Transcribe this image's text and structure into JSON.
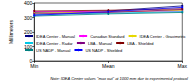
{
  "chart_data": {
    "type": "line",
    "y_label": "Millimeters",
    "annotation": "Note: IDEA Center values \"max out\" at 1000 mm due to experimental protocol",
    "categories": [
      "Min",
      "Mean",
      "Max"
    ],
    "series": [
      {
        "name": "IDEA Center - Manual",
        "color": "#000080",
        "values": [
          335,
          345,
          380
        ]
      },
      {
        "name": "Canadian Standard",
        "color": "#ff00ff",
        "values": [
          340,
          342,
          344
        ]
      },
      {
        "name": "IDEA Center - Gravimetric",
        "color": "#e6d800",
        "values": [
          330,
          338,
          350
        ]
      },
      {
        "name": "IDEA Center - Radar",
        "color": "#00c8e6",
        "values": [
          320,
          330,
          340
        ]
      },
      {
        "name": "LBA - Manual",
        "color": "#800080",
        "values": [
          325,
          335,
          355
        ]
      },
      {
        "name": "LBA - Shielded",
        "color": "#800000",
        "values": [
          345,
          350,
          360
        ]
      },
      {
        "name": "US NADP - Manual",
        "color": "#008080",
        "values": [
          310,
          325,
          335
        ]
      },
      {
        "name": "US NADP - Shielded",
        "color": "#0000ff",
        "values": [
          315,
          340,
          370
        ]
      }
    ],
    "ylim": [
      0,
      400
    ],
    "yticks": [
      0,
      100,
      200,
      300,
      400
    ],
    "grid": false,
    "legend": "bottom",
    "marker": "circle"
  }
}
